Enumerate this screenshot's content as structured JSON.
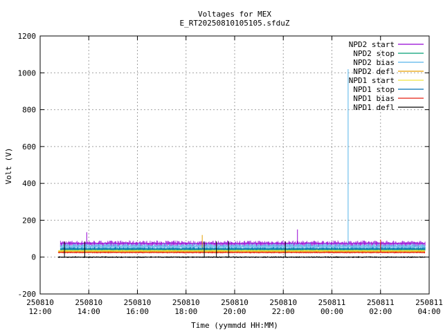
{
  "chart_data": {
    "type": "line",
    "title": "Voltages for MEX",
    "subtitle": "E_RT20250810105105.sfduZ",
    "xlabel": "Time (yymmdd HH:MM)",
    "ylabel": "Volt (V)",
    "xlim": [
      "2025-08-10 12:00",
      "2025-08-11 04:00"
    ],
    "ylim": [
      -200,
      1200
    ],
    "grid": true,
    "legend_position": "top-right",
    "y_ticks": [
      "-200",
      "0",
      "200",
      "400",
      "600",
      "800",
      "1000",
      "1200"
    ],
    "x_ticks": [
      {
        "date": "250810",
        "time": "12:00"
      },
      {
        "date": "250810",
        "time": "14:00"
      },
      {
        "date": "250810",
        "time": "16:00"
      },
      {
        "date": "250810",
        "time": "18:00"
      },
      {
        "date": "250810",
        "time": "20:00"
      },
      {
        "date": "250810",
        "time": "22:00"
      },
      {
        "date": "250811",
        "time": "00:00"
      },
      {
        "date": "250811",
        "time": "02:00"
      },
      {
        "date": "250811",
        "time": "04:00"
      }
    ],
    "series": [
      {
        "name": "NPD2 start",
        "color": "#9400d3",
        "baseline": 75,
        "band_low": 55,
        "band_high": 90,
        "x": [
          "2025-08-10 12:50",
          "2025-08-11 03:50"
        ],
        "spikes": [
          {
            "x": "2025-08-10 13:55",
            "y": 135
          },
          {
            "x": "2025-08-10 22:35",
            "y": 150
          }
        ]
      },
      {
        "name": "NPD2 stop",
        "color": "#009e73",
        "baseline": 40,
        "band_low": 35,
        "band_high": 55,
        "x": [
          "2025-08-10 12:50",
          "2025-08-11 03:50"
        ],
        "spikes": []
      },
      {
        "name": "NPD2 bias",
        "color": "#56b4e9",
        "baseline": 60,
        "band_low": 40,
        "band_high": 75,
        "x": [
          "2025-08-10 12:50",
          "2025-08-11 03:50"
        ],
        "spikes": [
          {
            "x": "2025-08-11 00:40",
            "y": 1020
          }
        ]
      },
      {
        "name": "NPD2 defl",
        "color": "#e69f00",
        "baseline": 30,
        "band_low": 25,
        "band_high": 40,
        "x": [
          "2025-08-10 12:45",
          "2025-08-11 03:50"
        ],
        "spikes": [
          {
            "x": "2025-08-10 18:40",
            "y": 120
          }
        ]
      },
      {
        "name": "NPD1 start",
        "color": "#f0e442",
        "baseline": 35,
        "band_low": 30,
        "band_high": 40,
        "x": [
          "2025-08-10 12:45",
          "2025-08-11 03:50"
        ],
        "spikes": []
      },
      {
        "name": "NPD1 stop",
        "color": "#0072b2",
        "baseline": 45,
        "band_low": 40,
        "band_high": 55,
        "x": [
          "2025-08-10 12:50",
          "2025-08-11 03:50"
        ],
        "spikes": []
      },
      {
        "name": "NPD1 bias",
        "color": "#e51e10",
        "baseline": 25,
        "band_low": 20,
        "band_high": 30,
        "x": [
          "2025-08-10 12:45",
          "2025-08-11 03:50"
        ],
        "spikes": [
          {
            "x": "2025-08-11 02:00",
            "y": 95
          }
        ]
      },
      {
        "name": "NPD1 defl",
        "color": "#000000",
        "baseline": 0,
        "band_low": -5,
        "band_high": 5,
        "x": [
          "2025-08-10 12:45",
          "2025-08-11 03:50"
        ],
        "spikes": [
          {
            "x": "2025-08-10 13:00",
            "y": 85
          },
          {
            "x": "2025-08-10 13:50",
            "y": 85
          },
          {
            "x": "2025-08-10 18:45",
            "y": 85
          },
          {
            "x": "2025-08-10 19:15",
            "y": 85
          },
          {
            "x": "2025-08-10 19:45",
            "y": 85
          },
          {
            "x": "2025-08-10 22:05",
            "y": 85
          }
        ]
      }
    ]
  }
}
